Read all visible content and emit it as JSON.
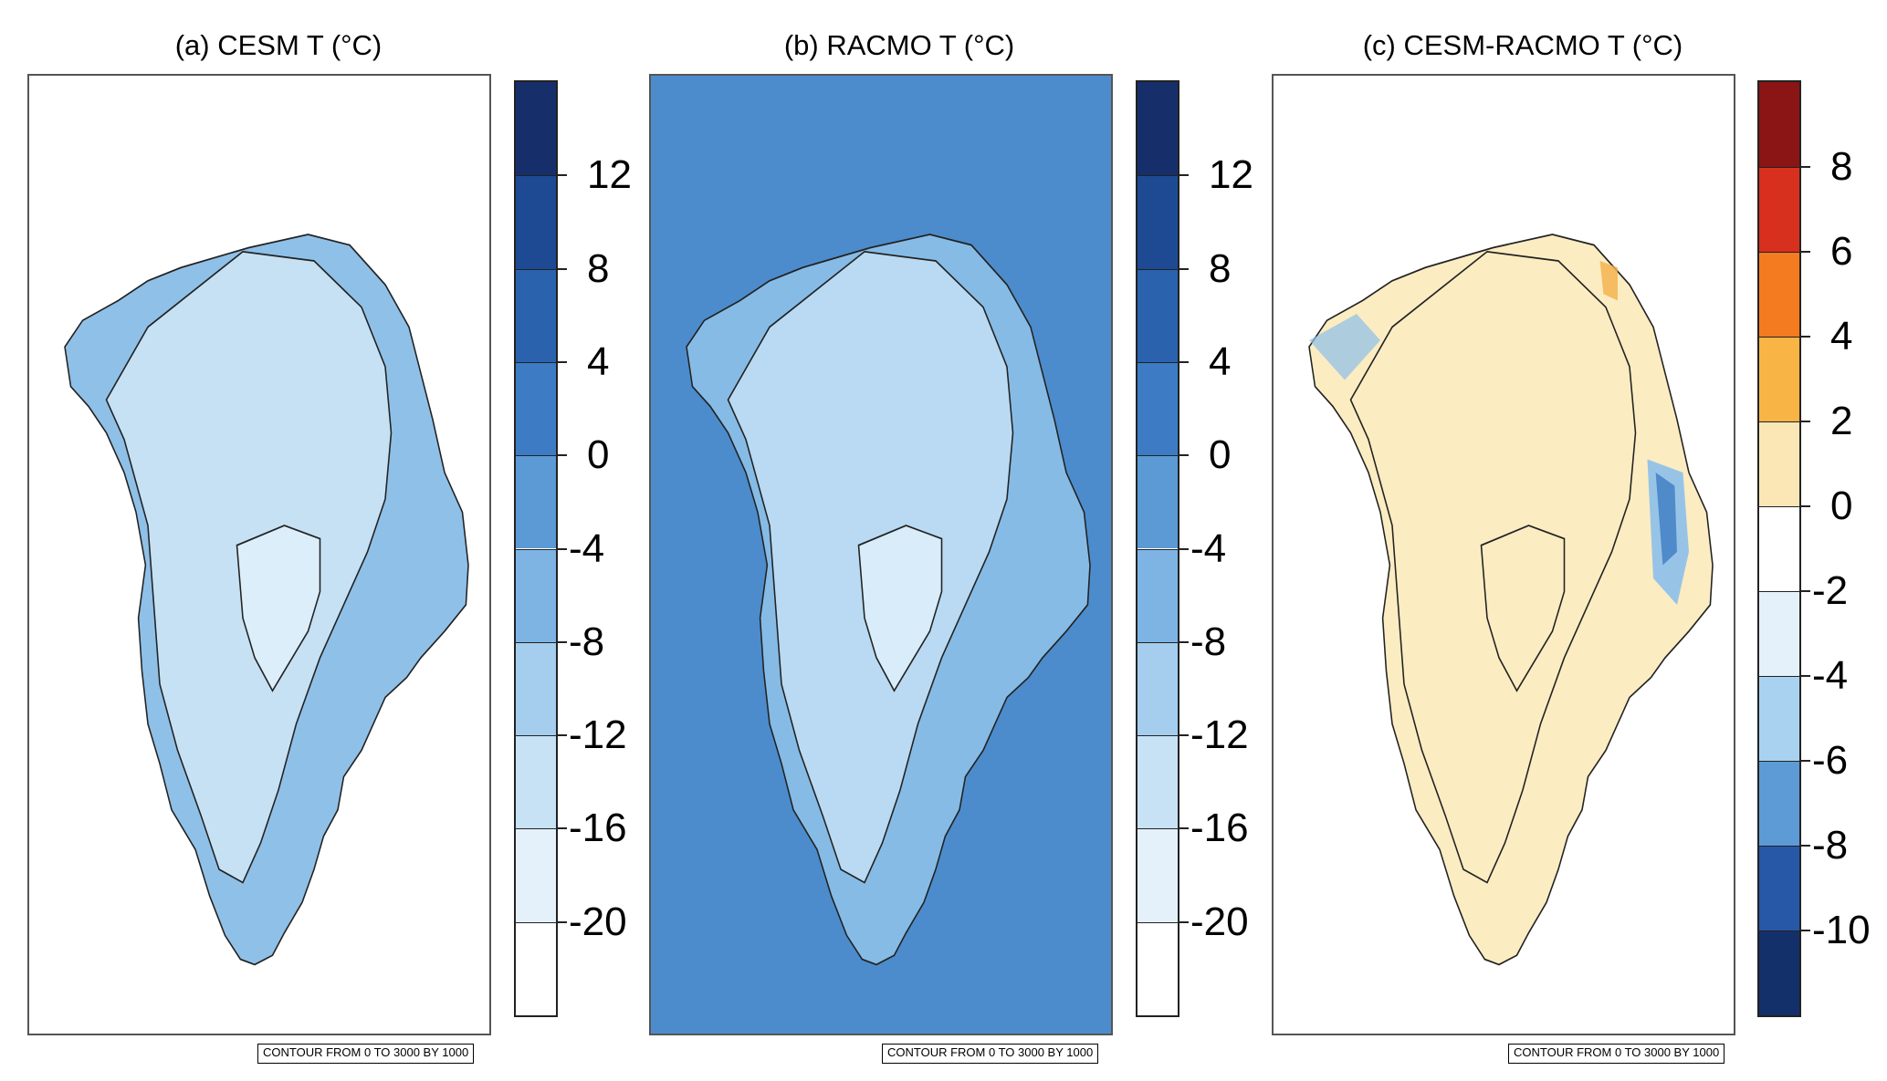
{
  "panels": [
    {
      "id": "a",
      "title": "(a) CESM T (°C)",
      "colorbar_labels": [
        "12",
        "8",
        "4",
        "0",
        "-4",
        "-8",
        "-12",
        "-16",
        "-20"
      ],
      "colorbar_colors": [
        "#162f6b",
        "#1e4a94",
        "#2a62ad",
        "#3d7cc4",
        "#5b9ad5",
        "#7db4e3",
        "#a5cdee",
        "#c7e2f5",
        "#e4f1fb",
        "#ffffff"
      ],
      "map_colors": {
        "background": "#ffffff",
        "ocean_south": "#2f68b3",
        "ocean_mid": "#4a86c8",
        "ocean_north": "#6ea7dd",
        "ice_margin": "#8fc0e8",
        "ice_interior": "#c6e1f4",
        "ice_summit": "#dceefa",
        "outline": "#222222"
      },
      "footnote": "CONTOUR FROM 0 TO 3000 BY 1000"
    },
    {
      "id": "b",
      "title": "(b) RACMO T (°C)",
      "colorbar_labels": [
        "12",
        "8",
        "4",
        "0",
        "-4",
        "-8",
        "-12",
        "-16",
        "-20"
      ],
      "colorbar_colors": [
        "#162f6b",
        "#1e4a94",
        "#2a62ad",
        "#3d7cc4",
        "#5b9ad5",
        "#7db4e3",
        "#a5cdee",
        "#c7e2f5",
        "#e4f1fb",
        "#ffffff"
      ],
      "map_colors": {
        "background": "#4c8ccc",
        "ocean_south": "#2a5fa8",
        "ocean_mid": "#3f7cc2",
        "ocean_north": "#5a98d4",
        "ice_margin": "#86bbe6",
        "ice_interior": "#b9daf2",
        "ice_summit": "#d8ecf9",
        "outline": "#222222"
      },
      "footnote": "CONTOUR FROM 0 TO 3000 BY 1000"
    },
    {
      "id": "c",
      "title": "(c) CESM-RACMO T (°C)",
      "colorbar_labels": [
        "8",
        "6",
        "4",
        "2",
        "0",
        "-2",
        "-4",
        "-6",
        "-8",
        "-10"
      ],
      "colorbar_colors": [
        "#8b1414",
        "#d7301f",
        "#f47b20",
        "#f8b444",
        "#fbe6b5",
        "#ffffff",
        "#e4f1fb",
        "#a9d2f0",
        "#5d9bd6",
        "#2758a8",
        "#14306a"
      ],
      "map_colors": {
        "background": "#ffffff",
        "land_anomaly": "#fbecc2",
        "warm_spots": "#f4b04a",
        "cold_coast": "#8cc0ea",
        "cold_coast_strong": "#3d7cc4",
        "outline": "#222222"
      },
      "footnote": "CONTOUR FROM 0 TO 3000 BY 1000"
    }
  ]
}
